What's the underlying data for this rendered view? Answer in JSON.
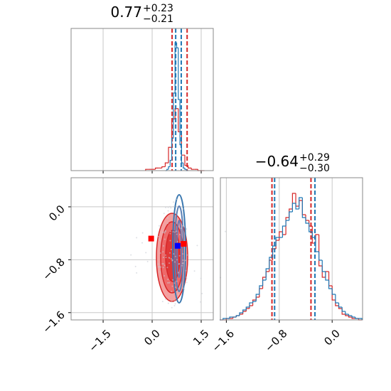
{
  "chart_data": [
    {
      "type": "histogram",
      "title": {
        "main": "0.77",
        "upper": "+0.23",
        "lower": "−0.21"
      },
      "xlim": [
        -2.48,
        1.87
      ],
      "xticks": [
        -1.5,
        0,
        1.5
      ],
      "ylim": [
        0,
        110
      ],
      "grid": true,
      "series": [
        {
          "color": "#d62728",
          "bins": [
            -0.2,
            -0.1,
            0,
            0.1,
            0.2,
            0.3,
            0.4,
            0.5,
            0.6,
            0.7,
            0.8,
            0.9,
            1.0,
            1.1,
            1.2,
            1.3,
            1.4,
            1.5,
            1.6
          ],
          "counts": [
            1,
            1,
            1,
            2,
            2,
            3,
            6,
            18,
            40,
            48,
            30,
            12,
            4,
            2,
            1,
            1,
            0,
            0
          ],
          "quantiles": [
            0.61,
            1.07
          ]
        },
        {
          "color": "#1f77b4",
          "bins": [
            0.4,
            0.45,
            0.5,
            0.55,
            0.6,
            0.65,
            0.7,
            0.75,
            0.8,
            0.85,
            0.9,
            0.95,
            1.0,
            1.05,
            1.1
          ],
          "counts": [
            0,
            1,
            3,
            8,
            25,
            60,
            99,
            95,
            55,
            20,
            6,
            2,
            1,
            0
          ],
          "quantiles": [
            0.72,
            0.89
          ]
        }
      ]
    },
    {
      "type": "scatter",
      "xlim": [
        -2.48,
        1.87
      ],
      "ylim": [
        -1.71,
        0.44
      ],
      "grid": true,
      "xticks": [
        {
          "value": -1.5,
          "label": "−1.5"
        },
        {
          "value": 0,
          "label": "0.0"
        },
        1.5
      ],
      "yticks": [
        {
          "value": -1.6,
          "label": "−1.6"
        },
        {
          "value": -0.8,
          "label": "−0.8"
        },
        {
          "value": 0,
          "label": "0.0"
        }
      ],
      "series": [
        {
          "color": "#ff0000",
          "x": [
            -0.03,
            0.96
          ],
          "values": [
            -0.48,
            -0.56
          ]
        },
        {
          "color": "#0000ff",
          "x": [
            0.78
          ],
          "values": [
            -0.59
          ]
        }
      ]
    },
    {
      "type": "histogram",
      "title": {
        "main": "−0.64",
        "upper": "+0.29",
        "lower": "−0.30"
      },
      "xlim": [
        -1.69,
        0.46
      ],
      "ylim": [
        0,
        100
      ],
      "grid": true,
      "xticks": [
        {
          "value": -1.6,
          "label": "−1.6"
        },
        {
          "value": -0.8,
          "label": "−0.8"
        },
        {
          "value": 0,
          "label": "0.0"
        }
      ],
      "series": [
        {
          "color": "#d62728",
          "bins": [
            -1.7,
            -1.65,
            -1.6,
            -1.55,
            -1.5,
            -1.45,
            -1.4,
            -1.35,
            -1.3,
            -1.25,
            -1.2,
            -1.15,
            -1.1,
            -1.05,
            -1.0,
            -0.95,
            -0.9,
            -0.85,
            -0.8,
            -0.75,
            -0.7,
            -0.65,
            -0.6,
            -0.55,
            -0.5,
            -0.45,
            -0.4,
            -0.35,
            -0.3,
            -0.25,
            -0.2,
            -0.15,
            -0.1,
            -0.05,
            0,
            0.05,
            0.1,
            0.15,
            0.2,
            0.25,
            0.3,
            0.35,
            0.4,
            0.45
          ],
          "counts": [
            0,
            0,
            1,
            1,
            2,
            3,
            4,
            6,
            8,
            10,
            14,
            16,
            22,
            30,
            34,
            42,
            50,
            56,
            62,
            60,
            72,
            78,
            89,
            80,
            84,
            74,
            70,
            66,
            54,
            60,
            38,
            30,
            34,
            24,
            14,
            10,
            8,
            4,
            3,
            2,
            1,
            1,
            0
          ],
          "quantiles": [
            -0.91,
            -0.32
          ]
        },
        {
          "color": "#1f77b4",
          "bins": [
            -1.7,
            -1.65,
            -1.6,
            -1.55,
            -1.5,
            -1.45,
            -1.4,
            -1.35,
            -1.3,
            -1.25,
            -1.2,
            -1.15,
            -1.1,
            -1.05,
            -1.0,
            -0.95,
            -0.9,
            -0.85,
            -0.8,
            -0.75,
            -0.7,
            -0.65,
            -0.6,
            -0.55,
            -0.5,
            -0.45,
            -0.4,
            -0.35,
            -0.3,
            -0.25,
            -0.2,
            -0.15,
            -0.1,
            -0.05,
            0,
            0.05,
            0.1,
            0.15,
            0.2,
            0.25,
            0.3,
            0.35,
            0.4,
            0.45
          ],
          "counts": [
            0,
            1,
            1,
            2,
            2,
            3,
            5,
            7,
            9,
            12,
            13,
            18,
            24,
            28,
            36,
            44,
            52,
            58,
            58,
            66,
            70,
            76,
            82,
            78,
            86,
            72,
            68,
            62,
            58,
            48,
            42,
            34,
            28,
            22,
            18,
            12,
            9,
            6,
            4,
            3,
            2,
            1,
            1
          ],
          "quantiles": [
            -0.87,
            -0.26
          ]
        }
      ]
    }
  ]
}
